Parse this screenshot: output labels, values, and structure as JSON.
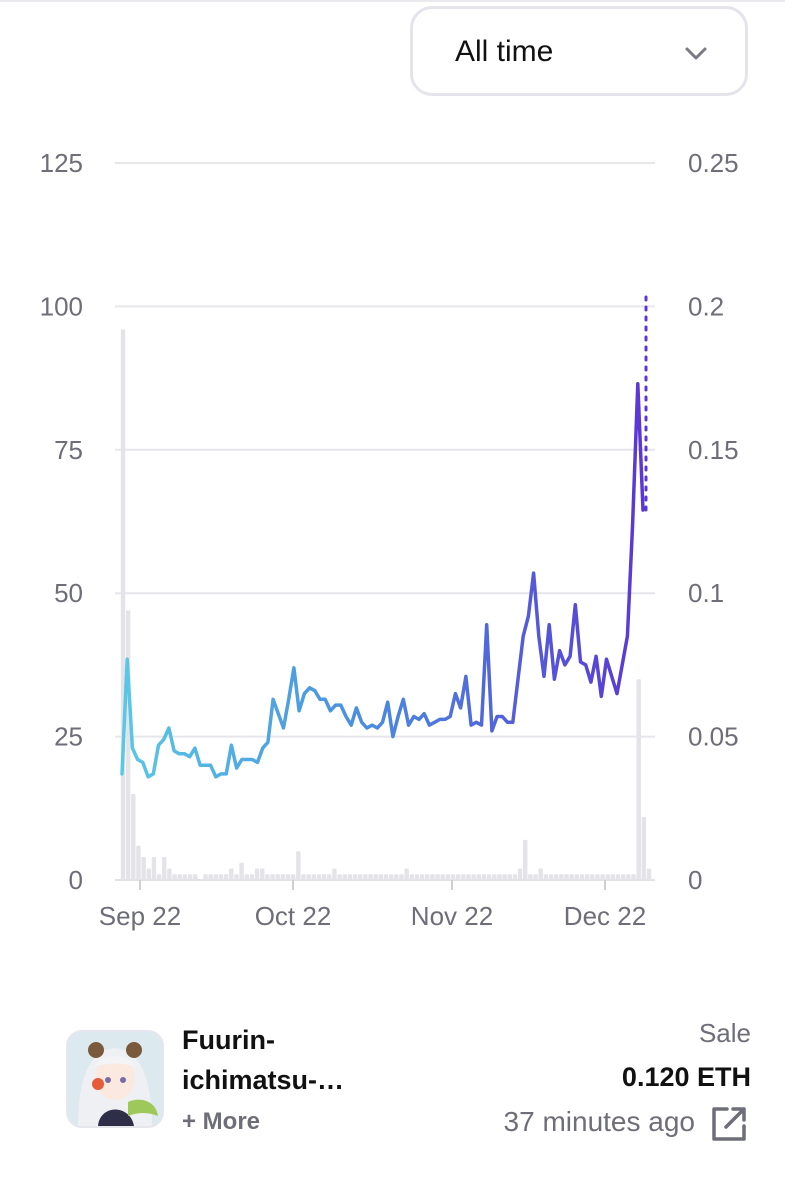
{
  "filter": {
    "selected": "All time",
    "chevron_icon": "chevron-down-icon"
  },
  "chart_data": {
    "type": "line",
    "title": "",
    "xlabel": "",
    "ylabel_left": "",
    "ylabel_right": "",
    "x_tick_labels": [
      "Sep 22",
      "Oct 22",
      "Nov 22",
      "Dec 22"
    ],
    "y_left_ticks": [
      "0",
      "25",
      "50",
      "75",
      "100",
      "125"
    ],
    "y_right_ticks": [
      "0",
      "0.05",
      "0.1",
      "0.15",
      "0.2",
      "0.25"
    ],
    "y_left_range": [
      0,
      125
    ],
    "y_right_range": [
      0,
      0.25
    ],
    "grid": true,
    "line_gradient": [
      "#5ac8e6",
      "#4a8fe0",
      "#5b35d5"
    ],
    "bar_color": "#e3e3e8",
    "series": [
      {
        "axis": "right",
        "kind": "line",
        "values": [
          0.037,
          0.077,
          0.046,
          0.042,
          0.041,
          0.036,
          0.037,
          0.047,
          0.049,
          0.053,
          0.045,
          0.044,
          0.044,
          0.043,
          0.046,
          0.04,
          0.04,
          0.04,
          0.036,
          0.037,
          0.037,
          0.047,
          0.039,
          0.042,
          0.042,
          0.042,
          0.041,
          0.046,
          0.048,
          0.063,
          0.058,
          0.053,
          0.063,
          0.074,
          0.059,
          0.065,
          0.067,
          0.066,
          0.063,
          0.063,
          0.059,
          0.061,
          0.061,
          0.057,
          0.054,
          0.06,
          0.055,
          0.053,
          0.054,
          0.053,
          0.055,
          0.062,
          0.05,
          0.057,
          0.063,
          0.054,
          0.057,
          0.056,
          0.058,
          0.054,
          0.055,
          0.056,
          0.056,
          0.057,
          0.065,
          0.06,
          0.071,
          0.054,
          0.055,
          0.054,
          0.089,
          0.052,
          0.057,
          0.057,
          0.055,
          0.055,
          0.07,
          0.085,
          0.092,
          0.107,
          0.085,
          0.071,
          0.089,
          0.07,
          0.08,
          0.075,
          0.078,
          0.096,
          0.076,
          0.075,
          0.069,
          0.078,
          0.064,
          0.077,
          0.071,
          0.065,
          0.075,
          0.085,
          0.124,
          0.173,
          0.129
        ]
      },
      {
        "axis": "right",
        "kind": "line-dotted",
        "values": [
          0.129,
          0.204
        ]
      },
      {
        "axis": "left",
        "kind": "bar",
        "values": [
          96,
          47,
          15,
          6,
          4,
          2,
          4,
          1,
          4,
          2,
          1,
          1,
          1,
          1,
          1,
          0,
          1,
          1,
          1,
          1,
          1,
          2,
          1,
          3,
          1,
          1,
          2,
          2,
          1,
          1,
          1,
          1,
          1,
          1,
          5,
          1,
          1,
          1,
          1,
          1,
          1,
          2,
          1,
          1,
          1,
          1,
          1,
          1,
          1,
          1,
          1,
          1,
          1,
          1,
          1,
          2,
          1,
          1,
          1,
          1,
          1,
          1,
          1,
          1,
          1,
          1,
          1,
          1,
          1,
          1,
          1,
          1,
          1,
          1,
          1,
          1,
          1,
          2,
          7,
          1,
          1,
          2,
          1,
          1,
          1,
          1,
          1,
          1,
          1,
          1,
          1,
          1,
          1,
          1,
          1,
          1,
          1,
          1,
          1,
          1,
          35,
          11,
          2
        ]
      }
    ]
  },
  "activity": {
    "item_name_line1": "Fuurin-",
    "item_name_line2": "ichimatsu-…",
    "more_label": "+ More",
    "event_type": "Sale",
    "price": "0.120 ETH",
    "time_ago": "37 minutes ago",
    "link_icon": "external-link-icon",
    "thumbnail_icon": "nft-thumbnail-image"
  }
}
